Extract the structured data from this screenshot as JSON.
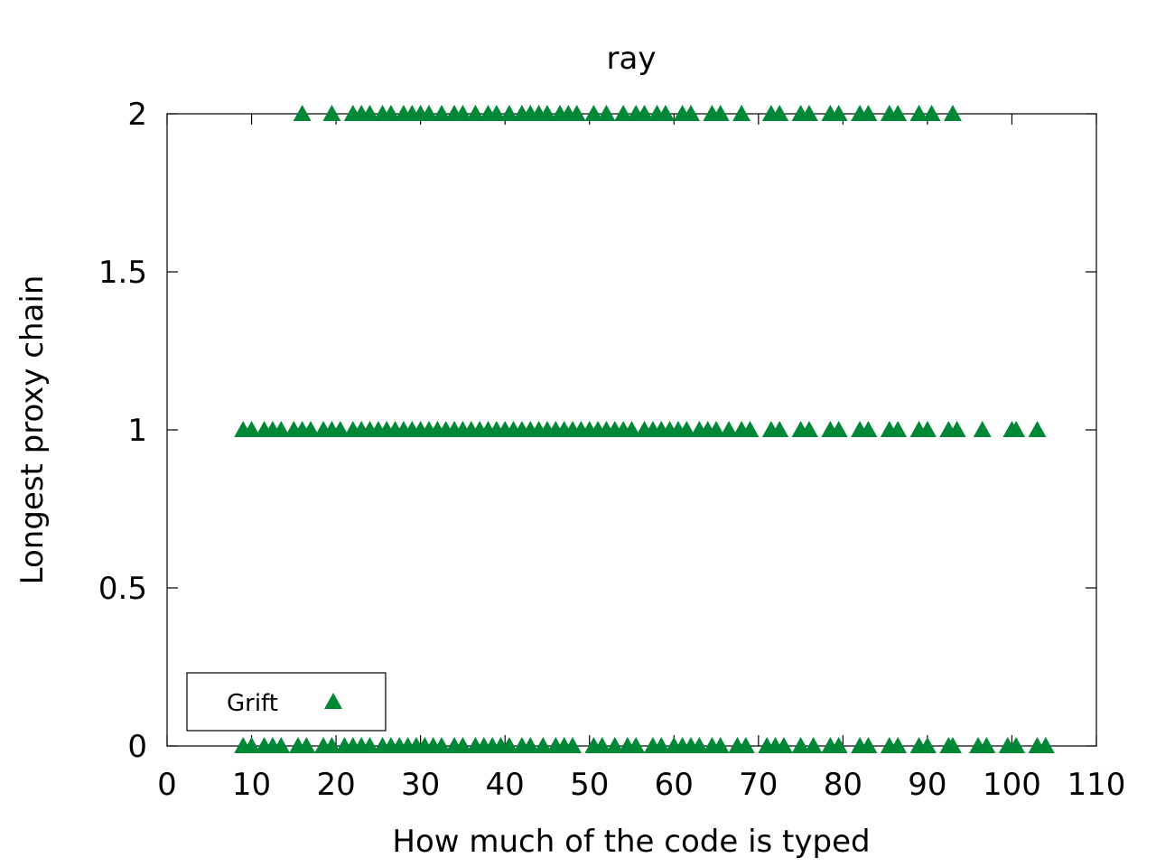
{
  "chart_data": {
    "type": "scatter",
    "title": "ray",
    "xlabel": "How much of the code is typed",
    "ylabel": "Longest proxy chain",
    "xlim": [
      0,
      110
    ],
    "ylim": [
      0,
      2
    ],
    "x_ticks": [
      "0",
      "10",
      "20",
      "30",
      "40",
      "50",
      "60",
      "70",
      "80",
      "90",
      "100",
      "110"
    ],
    "y_ticks": [
      "0",
      "0.5",
      "1",
      "1.5",
      "2"
    ],
    "grid": false,
    "legend_position": "bottom-left",
    "series": [
      {
        "name": "Grift",
        "color": "#008837",
        "marker": "triangle-up",
        "points": [
          [
            16,
            2
          ],
          [
            19.5,
            2
          ],
          [
            22,
            2
          ],
          [
            23,
            2
          ],
          [
            24,
            2
          ],
          [
            25.5,
            2
          ],
          [
            26.5,
            2
          ],
          [
            28,
            2
          ],
          [
            29,
            2
          ],
          [
            30,
            2
          ],
          [
            31,
            2
          ],
          [
            32.5,
            2
          ],
          [
            34,
            2
          ],
          [
            35,
            2
          ],
          [
            36.5,
            2
          ],
          [
            38,
            2
          ],
          [
            39,
            2
          ],
          [
            40.5,
            2
          ],
          [
            42,
            2
          ],
          [
            43,
            2
          ],
          [
            44,
            2
          ],
          [
            45,
            2
          ],
          [
            46.5,
            2
          ],
          [
            47.5,
            2
          ],
          [
            48.5,
            2
          ],
          [
            50.5,
            2
          ],
          [
            52,
            2
          ],
          [
            54,
            2
          ],
          [
            55.5,
            2
          ],
          [
            56.5,
            2
          ],
          [
            58,
            2
          ],
          [
            59,
            2
          ],
          [
            61,
            2
          ],
          [
            62,
            2
          ],
          [
            64.5,
            2
          ],
          [
            65.5,
            2
          ],
          [
            68,
            2
          ],
          [
            71.5,
            2
          ],
          [
            72.5,
            2
          ],
          [
            75,
            2
          ],
          [
            76,
            2
          ],
          [
            78.5,
            2
          ],
          [
            79.5,
            2
          ],
          [
            82,
            2
          ],
          [
            83,
            2
          ],
          [
            85.5,
            2
          ],
          [
            86.5,
            2
          ],
          [
            89,
            2
          ],
          [
            90.5,
            2
          ],
          [
            93,
            2
          ],
          [
            9,
            1
          ],
          [
            10,
            1
          ],
          [
            11.5,
            1
          ],
          [
            12.5,
            1
          ],
          [
            13.5,
            1
          ],
          [
            15,
            1
          ],
          [
            16,
            1
          ],
          [
            17,
            1
          ],
          [
            18.5,
            1
          ],
          [
            19.5,
            1
          ],
          [
            20.5,
            1
          ],
          [
            22,
            1
          ],
          [
            23,
            1
          ],
          [
            24,
            1
          ],
          [
            25,
            1
          ],
          [
            26,
            1
          ],
          [
            27,
            1
          ],
          [
            28,
            1
          ],
          [
            29,
            1
          ],
          [
            30,
            1
          ],
          [
            31,
            1
          ],
          [
            32,
            1
          ],
          [
            33,
            1
          ],
          [
            34,
            1
          ],
          [
            35,
            1
          ],
          [
            36,
            1
          ],
          [
            37,
            1
          ],
          [
            38,
            1
          ],
          [
            39,
            1
          ],
          [
            40,
            1
          ],
          [
            41,
            1
          ],
          [
            42,
            1
          ],
          [
            43,
            1
          ],
          [
            44,
            1
          ],
          [
            45,
            1
          ],
          [
            46,
            1
          ],
          [
            47,
            1
          ],
          [
            48,
            1
          ],
          [
            49,
            1
          ],
          [
            50,
            1
          ],
          [
            51,
            1
          ],
          [
            52,
            1
          ],
          [
            53,
            1
          ],
          [
            54,
            1
          ],
          [
            55,
            1
          ],
          [
            56.5,
            1
          ],
          [
            57.5,
            1
          ],
          [
            58.5,
            1
          ],
          [
            59.5,
            1
          ],
          [
            60.5,
            1
          ],
          [
            61.5,
            1
          ],
          [
            63,
            1
          ],
          [
            64,
            1
          ],
          [
            65,
            1
          ],
          [
            66.5,
            1
          ],
          [
            68,
            1
          ],
          [
            69,
            1
          ],
          [
            71.5,
            1
          ],
          [
            72.5,
            1
          ],
          [
            75,
            1
          ],
          [
            76,
            1
          ],
          [
            78.5,
            1
          ],
          [
            79.5,
            1
          ],
          [
            82,
            1
          ],
          [
            83,
            1
          ],
          [
            85.5,
            1
          ],
          [
            86.5,
            1
          ],
          [
            89,
            1
          ],
          [
            90,
            1
          ],
          [
            92.5,
            1
          ],
          [
            93.5,
            1
          ],
          [
            96.5,
            1
          ],
          [
            100,
            1
          ],
          [
            100.5,
            1
          ],
          [
            103,
            1
          ],
          [
            9,
            0
          ],
          [
            10,
            0
          ],
          [
            11.5,
            0
          ],
          [
            12.5,
            0
          ],
          [
            13.5,
            0
          ],
          [
            15.5,
            0
          ],
          [
            16.5,
            0
          ],
          [
            18.5,
            0
          ],
          [
            19.5,
            0
          ],
          [
            21,
            0
          ],
          [
            22,
            0
          ],
          [
            23,
            0
          ],
          [
            24,
            0
          ],
          [
            25.5,
            0
          ],
          [
            26.5,
            0
          ],
          [
            27.5,
            0
          ],
          [
            28.5,
            0
          ],
          [
            29.5,
            0
          ],
          [
            30.5,
            0
          ],
          [
            31.5,
            0
          ],
          [
            32.5,
            0
          ],
          [
            34,
            0
          ],
          [
            35,
            0
          ],
          [
            36.5,
            0
          ],
          [
            37.5,
            0
          ],
          [
            38.5,
            0
          ],
          [
            39.5,
            0
          ],
          [
            40.5,
            0
          ],
          [
            42,
            0
          ],
          [
            43,
            0
          ],
          [
            44.5,
            0
          ],
          [
            46,
            0
          ],
          [
            47,
            0
          ],
          [
            48,
            0
          ],
          [
            50.5,
            0
          ],
          [
            51.5,
            0
          ],
          [
            53,
            0
          ],
          [
            54.5,
            0
          ],
          [
            55.5,
            0
          ],
          [
            57.5,
            0
          ],
          [
            58.5,
            0
          ],
          [
            60,
            0
          ],
          [
            61,
            0
          ],
          [
            62,
            0
          ],
          [
            63,
            0
          ],
          [
            64.5,
            0
          ],
          [
            65.5,
            0
          ],
          [
            67.5,
            0
          ],
          [
            68.5,
            0
          ],
          [
            71,
            0
          ],
          [
            72,
            0
          ],
          [
            73,
            0
          ],
          [
            75,
            0
          ],
          [
            76.5,
            0
          ],
          [
            78.5,
            0
          ],
          [
            79.5,
            0
          ],
          [
            82,
            0
          ],
          [
            83,
            0
          ],
          [
            85.5,
            0
          ],
          [
            86.5,
            0
          ],
          [
            89,
            0
          ],
          [
            90,
            0
          ],
          [
            92.5,
            0
          ],
          [
            93,
            0
          ],
          [
            96,
            0
          ],
          [
            97,
            0
          ],
          [
            99.5,
            0
          ],
          [
            100.5,
            0
          ],
          [
            103,
            0
          ],
          [
            104,
            0
          ]
        ]
      }
    ]
  }
}
